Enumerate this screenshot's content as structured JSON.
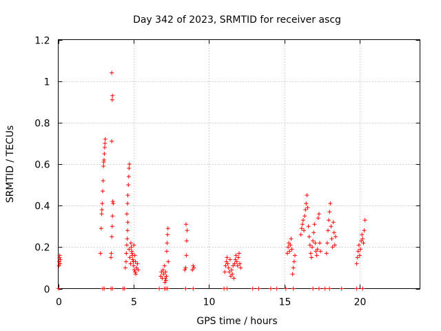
{
  "chart_data": {
    "type": "scatter",
    "title": "Day 342 of 2023, SRMTID for receiver ascg",
    "xlabel": "GPS time / hours",
    "ylabel": "SRMTID / TECUs",
    "xlim": [
      0,
      24
    ],
    "ylim": [
      0,
      1.2
    ],
    "xticks": [
      0,
      5,
      10,
      15,
      20
    ],
    "yticks": [
      0,
      0.2,
      0.4,
      0.6,
      0.8,
      1,
      1.2
    ],
    "xtick_labels": [
      "0",
      "5",
      "10",
      "15",
      "20"
    ],
    "ytick_labels": [
      "0",
      "0.2",
      "0.4",
      "0.6",
      "0.8",
      "1",
      "1.2"
    ],
    "grid": true,
    "marker": "+",
    "color": "#ff0000",
    "series": [
      {
        "name": "SRMTID",
        "points": [
          [
            0.05,
            0.11
          ],
          [
            0.06,
            0.13
          ],
          [
            0.08,
            0.15
          ],
          [
            0.1,
            0.16
          ],
          [
            0.12,
            0.12
          ],
          [
            0.14,
            0.14
          ],
          [
            0.03,
            0.0
          ],
          [
            2.8,
            0.17
          ],
          [
            2.85,
            0.29
          ],
          [
            2.88,
            0.36
          ],
          [
            2.9,
            0.38
          ],
          [
            2.92,
            0.41
          ],
          [
            2.95,
            0.47
          ],
          [
            2.98,
            0.52
          ],
          [
            3.0,
            0.59
          ],
          [
            3.02,
            0.61
          ],
          [
            3.04,
            0.62
          ],
          [
            3.06,
            0.65
          ],
          [
            3.08,
            0.68
          ],
          [
            3.1,
            0.7
          ],
          [
            3.12,
            0.72
          ],
          [
            2.95,
            0.0
          ],
          [
            3.05,
            0.0
          ],
          [
            3.5,
            0.15
          ],
          [
            3.52,
            0.17
          ],
          [
            3.55,
            0.25
          ],
          [
            3.58,
            0.3
          ],
          [
            3.6,
            0.35
          ],
          [
            3.62,
            0.42
          ],
          [
            3.55,
            0.71
          ],
          [
            3.58,
            0.91
          ],
          [
            3.6,
            0.93
          ],
          [
            3.55,
            1.04
          ],
          [
            3.65,
            0.41
          ],
          [
            3.5,
            0.0
          ],
          [
            3.6,
            0.0
          ],
          [
            4.3,
            0.0
          ],
          [
            4.4,
            0.0
          ],
          [
            4.45,
            0.1
          ],
          [
            4.5,
            0.13
          ],
          [
            4.52,
            0.17
          ],
          [
            4.55,
            0.21
          ],
          [
            4.58,
            0.24
          ],
          [
            4.6,
            0.28
          ],
          [
            4.62,
            0.32
          ],
          [
            4.55,
            0.36
          ],
          [
            4.6,
            0.41
          ],
          [
            4.62,
            0.45
          ],
          [
            4.65,
            0.5
          ],
          [
            4.68,
            0.54
          ],
          [
            4.7,
            0.58
          ],
          [
            4.72,
            0.6
          ],
          [
            4.7,
            0.19
          ],
          [
            4.75,
            0.15
          ],
          [
            4.8,
            0.12
          ],
          [
            4.85,
            0.2
          ],
          [
            4.9,
            0.17
          ],
          [
            4.95,
            0.14
          ],
          [
            5.0,
            0.11
          ],
          [
            5.05,
            0.09
          ],
          [
            5.1,
            0.08
          ],
          [
            5.15,
            0.07
          ],
          [
            5.2,
            0.1
          ],
          [
            5.25,
            0.12
          ],
          [
            5.3,
            0.09
          ],
          [
            4.82,
            0.22
          ],
          [
            4.88,
            0.18
          ],
          [
            4.92,
            0.16
          ],
          [
            4.98,
            0.13
          ],
          [
            5.02,
            0.21
          ],
          [
            5.08,
            0.16
          ],
          [
            5.12,
            0.13
          ],
          [
            6.7,
            0.0
          ],
          [
            6.8,
            0.06
          ],
          [
            6.85,
            0.08
          ],
          [
            6.9,
            0.05
          ],
          [
            6.95,
            0.09
          ],
          [
            7.0,
            0.07
          ],
          [
            7.05,
            0.11
          ],
          [
            7.08,
            0.03
          ],
          [
            7.1,
            0.05
          ],
          [
            7.12,
            0.08
          ],
          [
            7.15,
            0.04
          ],
          [
            7.18,
            0.06
          ],
          [
            7.2,
            0.18
          ],
          [
            7.22,
            0.22
          ],
          [
            7.25,
            0.26
          ],
          [
            7.28,
            0.29
          ],
          [
            7.3,
            0.13
          ],
          [
            7.25,
            0.0
          ],
          [
            7.15,
            0.0
          ],
          [
            7.05,
            0.0
          ],
          [
            8.4,
            0.09
          ],
          [
            8.45,
            0.1
          ],
          [
            8.5,
            0.16
          ],
          [
            8.52,
            0.23
          ],
          [
            8.55,
            0.28
          ],
          [
            8.48,
            0.31
          ],
          [
            8.45,
            0.0
          ],
          [
            8.9,
            0.09
          ],
          [
            8.95,
            0.11
          ],
          [
            9.0,
            0.1
          ],
          [
            8.95,
            0.0
          ],
          [
            11.0,
            0.0
          ],
          [
            11.05,
            0.08
          ],
          [
            11.1,
            0.11
          ],
          [
            11.15,
            0.13
          ],
          [
            11.2,
            0.15
          ],
          [
            11.25,
            0.12
          ],
          [
            11.3,
            0.1
          ],
          [
            11.35,
            0.08
          ],
          [
            11.4,
            0.14
          ],
          [
            11.45,
            0.06
          ],
          [
            11.5,
            0.09
          ],
          [
            11.55,
            0.07
          ],
          [
            11.6,
            0.11
          ],
          [
            11.65,
            0.05
          ],
          [
            11.7,
            0.12
          ],
          [
            11.75,
            0.14
          ],
          [
            11.8,
            0.16
          ],
          [
            11.85,
            0.13
          ],
          [
            11.9,
            0.11
          ],
          [
            11.95,
            0.15
          ],
          [
            12.0,
            0.17
          ],
          [
            12.05,
            0.12
          ],
          [
            12.1,
            0.1
          ],
          [
            11.2,
            0.0
          ],
          [
            12.9,
            0.0
          ],
          [
            13.3,
            0.0
          ],
          [
            14.1,
            0.0
          ],
          [
            14.5,
            0.0
          ],
          [
            15.1,
            0.0
          ],
          [
            15.2,
            0.17
          ],
          [
            15.25,
            0.2
          ],
          [
            15.3,
            0.22
          ],
          [
            15.35,
            0.18
          ],
          [
            15.4,
            0.21
          ],
          [
            15.45,
            0.24
          ],
          [
            15.5,
            0.19
          ],
          [
            15.55,
            0.07
          ],
          [
            15.6,
            0.1
          ],
          [
            15.65,
            0.13
          ],
          [
            15.7,
            0.16
          ],
          [
            15.6,
            0.0
          ],
          [
            16.1,
            0.26
          ],
          [
            16.15,
            0.29
          ],
          [
            16.2,
            0.31
          ],
          [
            16.25,
            0.33
          ],
          [
            16.3,
            0.28
          ],
          [
            16.35,
            0.35
          ],
          [
            16.4,
            0.38
          ],
          [
            16.45,
            0.41
          ],
          [
            16.5,
            0.45
          ],
          [
            16.55,
            0.39
          ],
          [
            16.6,
            0.3
          ],
          [
            16.65,
            0.25
          ],
          [
            16.7,
            0.21
          ],
          [
            16.75,
            0.17
          ],
          [
            16.8,
            0.15
          ],
          [
            16.85,
            0.2
          ],
          [
            16.9,
            0.23
          ],
          [
            16.95,
            0.27
          ],
          [
            17.0,
            0.31
          ],
          [
            17.05,
            0.22
          ],
          [
            17.1,
            0.18
          ],
          [
            17.15,
            0.16
          ],
          [
            17.2,
            0.19
          ],
          [
            17.25,
            0.34
          ],
          [
            17.3,
            0.36
          ],
          [
            17.35,
            0.22
          ],
          [
            17.4,
            0.18
          ],
          [
            16.9,
            0.0
          ],
          [
            17.3,
            0.0
          ],
          [
            17.7,
            0.0
          ],
          [
            17.8,
            0.17
          ],
          [
            17.85,
            0.22
          ],
          [
            17.9,
            0.28
          ],
          [
            17.95,
            0.33
          ],
          [
            18.0,
            0.37
          ],
          [
            18.05,
            0.41
          ],
          [
            18.1,
            0.3
          ],
          [
            18.15,
            0.24
          ],
          [
            18.2,
            0.2
          ],
          [
            18.25,
            0.32
          ],
          [
            18.3,
            0.27
          ],
          [
            18.35,
            0.21
          ],
          [
            18.4,
            0.25
          ],
          [
            18.0,
            0.0
          ],
          [
            18.8,
            0.0
          ],
          [
            19.8,
            0.12
          ],
          [
            19.85,
            0.15
          ],
          [
            19.9,
            0.18
          ],
          [
            19.95,
            0.21
          ],
          [
            20.0,
            0.16
          ],
          [
            20.05,
            0.19
          ],
          [
            20.1,
            0.23
          ],
          [
            20.15,
            0.26
          ],
          [
            20.2,
            0.24
          ],
          [
            20.25,
            0.22
          ],
          [
            20.3,
            0.28
          ],
          [
            20.35,
            0.33
          ],
          [
            19.8,
            0.0
          ],
          [
            20.2,
            0.0
          ]
        ]
      }
    ]
  }
}
